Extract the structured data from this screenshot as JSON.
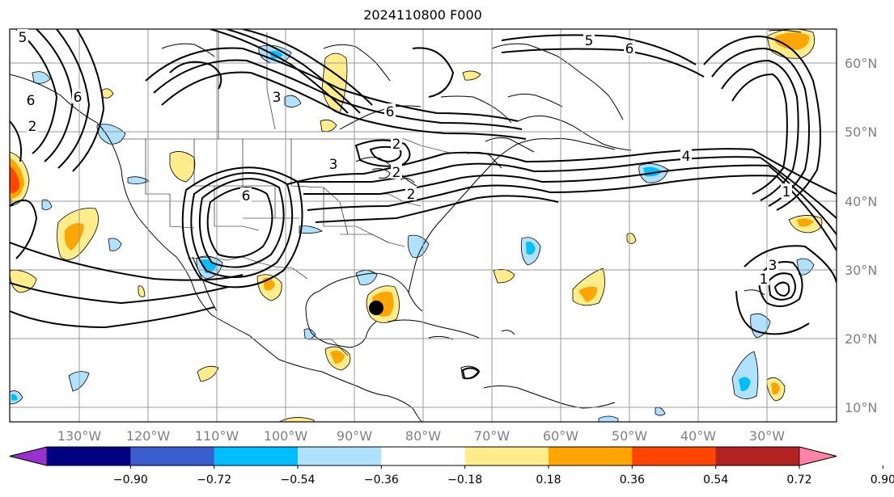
{
  "title": "2024110800 F000",
  "lon_labels": [
    "130°W",
    "120°W",
    "110°W",
    "100°W",
    "90°W",
    "80°W",
    "70°W",
    "60°W",
    "50°W",
    "40°W",
    "30°W"
  ],
  "lat_labels": [
    "60°N",
    "50°N",
    "40°N",
    "30°N",
    "20°N",
    "10°N"
  ],
  "contour_labels": [
    "5",
    "6",
    "6",
    "2",
    "6",
    "3",
    "6",
    "2",
    "3",
    "2",
    "2",
    "6",
    "5",
    "4",
    "1",
    "3",
    "1"
  ],
  "colorbar": {
    "ticks": [
      "−0.90",
      "−0.72",
      "−0.54",
      "−0.36",
      "−0.18",
      "0.18",
      "0.36",
      "0.54",
      "0.72",
      "0.90"
    ],
    "colors": [
      "#9932cc",
      "#000080",
      "#3a5fcd",
      "#00bfff",
      "#b0e2ff",
      "#ffffff",
      "#ffec8b",
      "#ffa500",
      "#ff4500",
      "#b22222",
      "#ff82ab"
    ]
  },
  "colors": {
    "pos_light": "#ffec8b",
    "pos_mid": "#ffa500",
    "pos_strong": "#ff4500",
    "neg_light": "#b0e2ff",
    "neg_mid": "#00bfff",
    "marker": "#000000"
  }
}
